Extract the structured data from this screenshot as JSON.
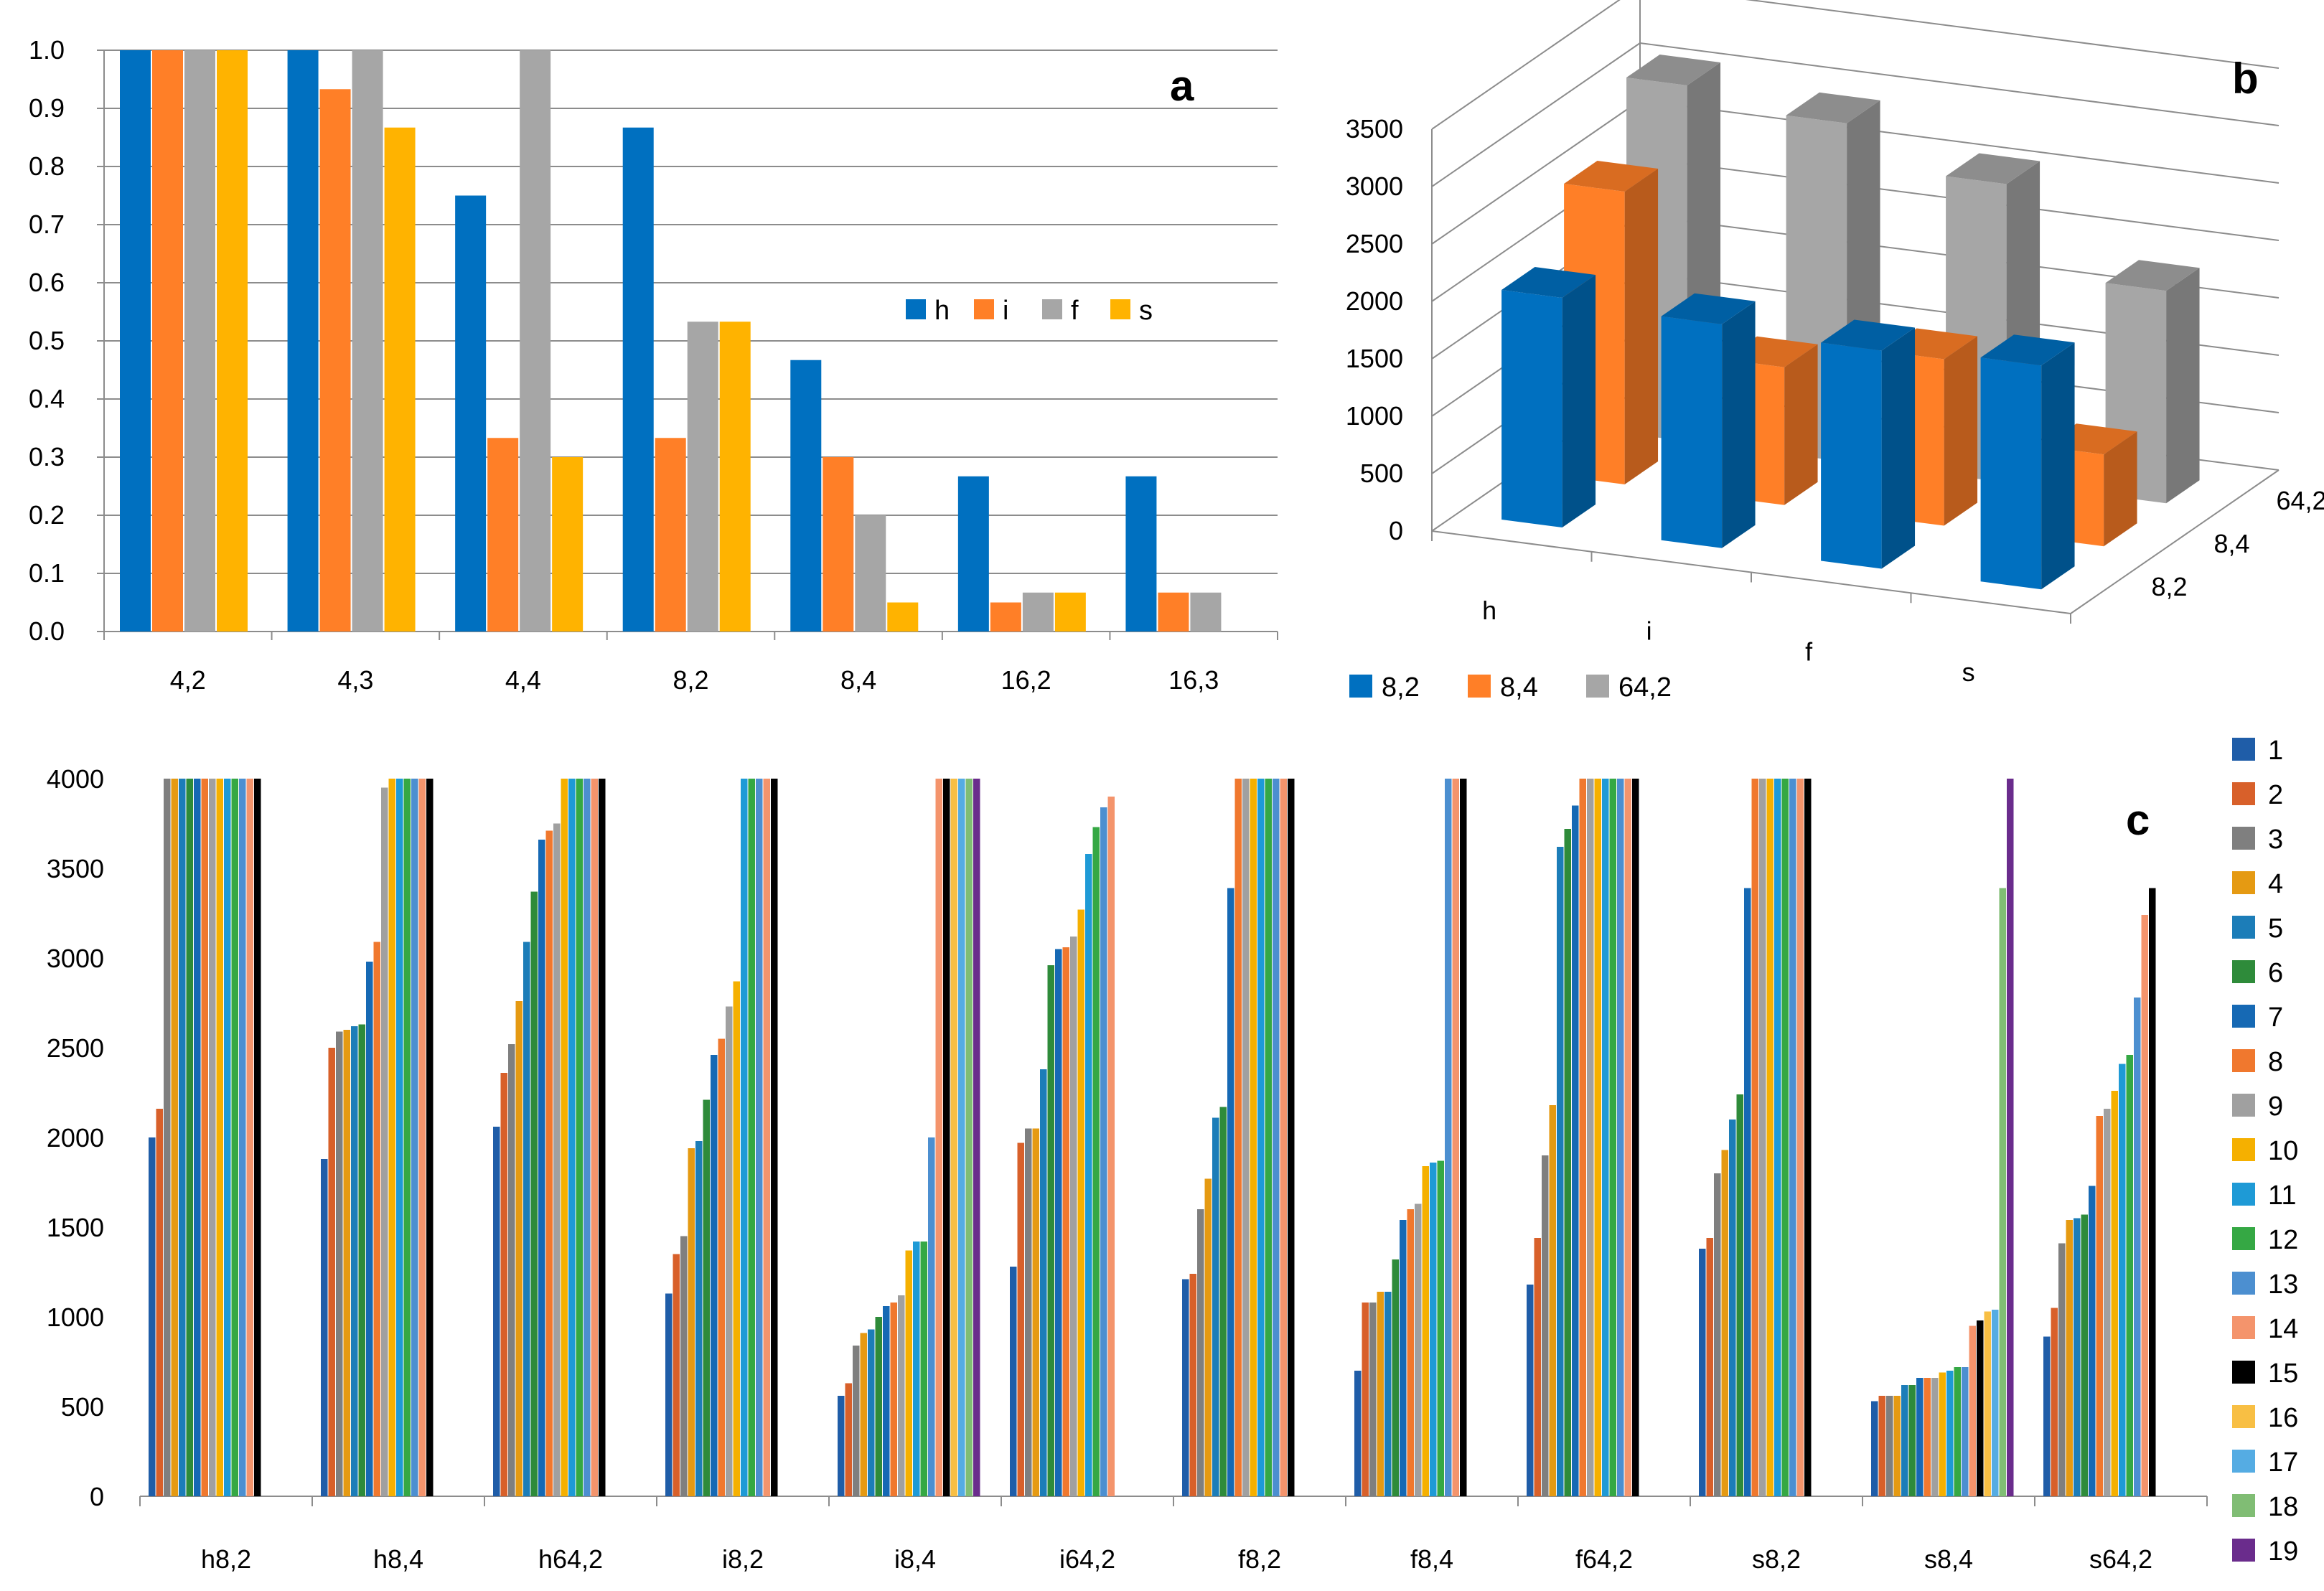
{
  "chart_data": [
    {
      "panel": "a",
      "type": "bar",
      "title": "",
      "xlabel": "",
      "ylabel": "",
      "ylim": [
        0,
        1.0
      ],
      "yticks": [
        "0.0",
        "0.1",
        "0.2",
        "0.3",
        "0.4",
        "0.5",
        "0.6",
        "0.7",
        "0.8",
        "0.9",
        "1.0"
      ],
      "grid": true,
      "legend": "right-middle",
      "categories": [
        "4,2",
        "4,3",
        "4,4",
        "8,2",
        "8,4",
        "16,2",
        "16,3"
      ],
      "series": [
        {
          "name": "h",
          "color": "#0070C0",
          "values": [
            1.0,
            1.0,
            0.75,
            0.867,
            0.467,
            0.267,
            0.267
          ]
        },
        {
          "name": "i",
          "color": "#FF7F27",
          "values": [
            1.0,
            0.933,
            0.333,
            0.333,
            0.3,
            0.05,
            0.067
          ]
        },
        {
          "name": "f",
          "color": "#A6A6A6",
          "values": [
            1.0,
            1.0,
            1.0,
            0.533,
            0.2,
            0.067,
            0.067
          ]
        },
        {
          "name": "s",
          "color": "#FFB300",
          "values": [
            1.0,
            0.867,
            0.3,
            0.533,
            0.05,
            0.067,
            0.0
          ]
        }
      ]
    },
    {
      "panel": "b",
      "type": "bar",
      "title": "",
      "xlabel": "",
      "ylabel": "",
      "ylim": [
        0,
        3500
      ],
      "yticks": [
        "0",
        "500",
        "1000",
        "1500",
        "2000",
        "2500",
        "3000",
        "3500"
      ],
      "grid": true,
      "legend": "bottom-left",
      "categories": [
        "h",
        "i",
        "f",
        "s"
      ],
      "depth_labels": [
        "64,2",
        "8,4",
        "8,2"
      ],
      "series": [
        {
          "name": "8,2",
          "color": "#0070C0",
          "values": [
            2000,
            1950,
            1900,
            1950
          ]
        },
        {
          "name": "8,4",
          "color": "#FF7F27",
          "values": [
            2550,
            1200,
            1450,
            800
          ]
        },
        {
          "name": "64,2",
          "color": "#A6A6A6",
          "values": [
            3100,
            2950,
            2600,
            1850
          ]
        }
      ]
    },
    {
      "panel": "c",
      "type": "bar",
      "title": "",
      "xlabel": "",
      "ylabel": "",
      "ylim": [
        0,
        4000
      ],
      "yticks": [
        "0",
        "500",
        "1000",
        "1500",
        "2000",
        "2500",
        "3000",
        "3500",
        "4000"
      ],
      "grid": false,
      "legend": "right",
      "categories": [
        "h8,2",
        "h8,4",
        "h64,2",
        "i8,2",
        "i8,4",
        "i64,2",
        "f8,2",
        "f8,4",
        "f64,2",
        "s8,2",
        "s8,4",
        "s64,2"
      ],
      "series_names": [
        "1",
        "2",
        "3",
        "4",
        "5",
        "6",
        "7",
        "8",
        "9",
        "10",
        "11",
        "12",
        "13",
        "14",
        "15",
        "16",
        "17",
        "18",
        "19"
      ],
      "series_colors": [
        "#1F5DA8",
        "#D8602A",
        "#7F7F7F",
        "#E59A12",
        "#1C7DB8",
        "#2E8B3A",
        "#1669B4",
        "#F0782E",
        "#A0A0A0",
        "#F5B000",
        "#1E9AD6",
        "#35A844",
        "#4C8FD0",
        "#F4946C",
        "#000000",
        "#F8BF44",
        "#55ACE3",
        "#80BD74",
        "#6A2C8C"
      ],
      "values": [
        [
          2000,
          2160,
          4000,
          4000,
          4000,
          4000,
          4000,
          4000,
          4000,
          4000,
          4000,
          4000,
          4000,
          4000,
          4000
        ],
        [
          1880,
          2500,
          2590,
          2600,
          2620,
          2630,
          2980,
          3090,
          3950,
          4000,
          4000,
          4000,
          4000,
          4000,
          4000
        ],
        [
          2060,
          2360,
          2520,
          2760,
          3090,
          3370,
          3660,
          3710,
          3750,
          4000,
          4000,
          4000,
          4000,
          4000,
          4000
        ],
        [
          1130,
          1350,
          1450,
          1940,
          1980,
          2210,
          2460,
          2550,
          2730,
          2870,
          4000,
          4000,
          4000,
          4000,
          4000
        ],
        [
          560,
          630,
          840,
          910,
          930,
          1000,
          1060,
          1080,
          1120,
          1370,
          1420,
          1420,
          2000,
          4000,
          4000,
          4000,
          4000,
          4000,
          4000
        ],
        [
          1280,
          1970,
          2050,
          2050,
          2380,
          2960,
          3050,
          3060,
          3120,
          3270,
          3580,
          3730,
          3840,
          3900
        ],
        [
          1210,
          1240,
          1600,
          1770,
          2110,
          2170,
          3390,
          4000,
          4000,
          4000,
          4000,
          4000,
          4000,
          4000,
          4000
        ],
        [
          700,
          1080,
          1080,
          1140,
          1140,
          1320,
          1540,
          1600,
          1630,
          1840,
          1860,
          1870,
          4000,
          4000,
          4000
        ],
        [
          1180,
          1440,
          1900,
          2180,
          3620,
          3720,
          3850,
          4000,
          4000,
          4000,
          4000,
          4000,
          4000,
          4000,
          4000
        ],
        [
          1380,
          1440,
          1800,
          1930,
          2100,
          2240,
          3390,
          4000,
          4000,
          4000,
          4000,
          4000,
          4000,
          4000,
          4000
        ],
        [
          530,
          560,
          560,
          560,
          620,
          620,
          660,
          660,
          660,
          690,
          700,
          720,
          720,
          950,
          980,
          1030,
          1040,
          3390,
          4000
        ],
        [
          890,
          1050,
          1410,
          1540,
          1550,
          1570,
          1730,
          2120,
          2160,
          2260,
          2410,
          2460,
          2780,
          3240,
          3390
        ]
      ]
    }
  ],
  "labels": {
    "panel_a": "a",
    "panel_b": "b",
    "panel_c": "c"
  }
}
